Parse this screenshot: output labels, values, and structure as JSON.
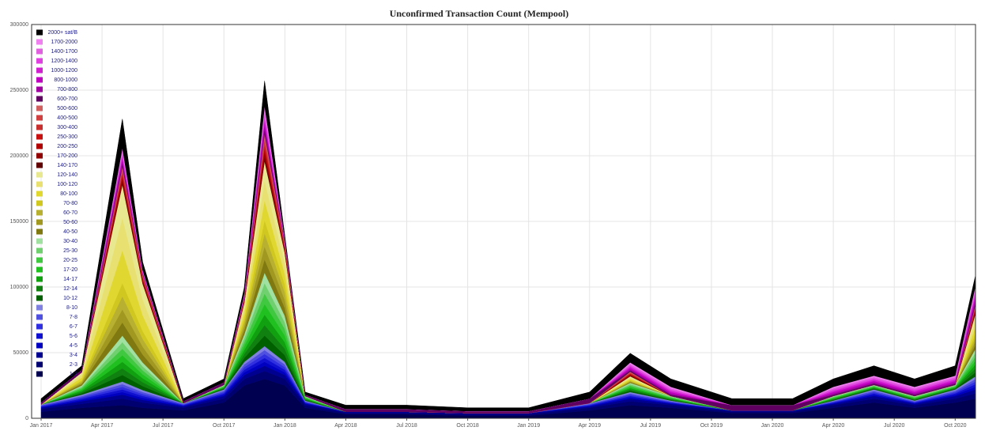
{
  "chart_data": {
    "type": "stacked-area",
    "title": "Unconfirmed Transaction Count (Mempool)",
    "x": [
      "2017-01",
      "2017-03",
      "2017-05",
      "2017-06",
      "2017-08",
      "2017-10",
      "2017-11",
      "2017-12",
      "2018-01",
      "2018-02",
      "2018-04",
      "2018-07",
      "2018-10",
      "2019-01",
      "2019-04",
      "2019-06",
      "2019-08",
      "2019-11",
      "2020-02",
      "2020-04",
      "2020-06",
      "2020-08",
      "2020-10",
      "2020-11"
    ],
    "xlim": [
      "2017-01",
      "2020-11"
    ],
    "xticks": [
      {
        "value": "2017-01",
        "label": "Jan 2017"
      },
      {
        "value": "2017-04",
        "label": "Apr 2017"
      },
      {
        "value": "2017-07",
        "label": "Jul 2017"
      },
      {
        "value": "2017-10",
        "label": "Oct 2017"
      },
      {
        "value": "2018-01",
        "label": "Jan 2018"
      },
      {
        "value": "2018-04",
        "label": "Apr 2018"
      },
      {
        "value": "2018-07",
        "label": "Jul 2018"
      },
      {
        "value": "2018-10",
        "label": "Oct 2018"
      },
      {
        "value": "2019-01",
        "label": "Jan 2019"
      },
      {
        "value": "2019-04",
        "label": "Apr 2019"
      },
      {
        "value": "2019-07",
        "label": "Jul 2019"
      },
      {
        "value": "2019-10",
        "label": "Oct 2019"
      },
      {
        "value": "2020-01",
        "label": "Jan 2020"
      },
      {
        "value": "2020-04",
        "label": "Apr 2020"
      },
      {
        "value": "2020-07",
        "label": "Jul 2020"
      },
      {
        "value": "2020-10",
        "label": "Oct 2020"
      }
    ],
    "ylim": [
      0,
      300000
    ],
    "yticks": [
      0,
      50000,
      100000,
      150000,
      200000,
      250000,
      300000
    ],
    "grid": true,
    "legend": "upper-left",
    "series": [
      {
        "name": "2000+ sat/B",
        "color": "#000000",
        "values": [
          3000,
          3000,
          22000,
          6000,
          2000,
          2500,
          4500,
          19000,
          2500,
          2000,
          3000,
          3000,
          2500,
          2500,
          5000,
          7000,
          6000,
          5000,
          5000,
          6000,
          7500,
          6000,
          7500,
          8000
        ]
      },
      {
        "name": "1700-2000",
        "color": "#f080f0",
        "values": [
          0,
          0,
          2000,
          500,
          0,
          0,
          500,
          3000,
          500,
          0,
          0,
          0,
          0,
          0,
          0,
          1000,
          1000,
          0,
          0,
          1000,
          1000,
          1000,
          1000,
          2000
        ]
      },
      {
        "name": "1400-1700",
        "color": "#e060e0",
        "values": [
          0,
          0,
          2000,
          500,
          0,
          0,
          500,
          3000,
          500,
          0,
          0,
          0,
          0,
          0,
          0,
          1000,
          1000,
          0,
          0,
          1000,
          1000,
          1000,
          1000,
          2000
        ]
      },
      {
        "name": "1200-1400",
        "color": "#e040e0",
        "values": [
          0,
          0,
          2000,
          500,
          0,
          0,
          500,
          3000,
          500,
          0,
          0,
          0,
          0,
          0,
          0,
          1000,
          1000,
          0,
          0,
          1000,
          1000,
          1000,
          1000,
          2000
        ]
      },
      {
        "name": "1000-1200",
        "color": "#d020d0",
        "values": [
          0,
          0,
          2000,
          500,
          0,
          0,
          500,
          3000,
          500,
          0,
          0,
          0,
          0,
          0,
          0,
          1000,
          1000,
          0,
          0,
          1000,
          1000,
          1000,
          1000,
          2000
        ]
      },
      {
        "name": "800-1000",
        "color": "#c000c0",
        "values": [
          0,
          0,
          2000,
          500,
          0,
          0,
          500,
          3000,
          500,
          0,
          0,
          0,
          0,
          0,
          0,
          1000,
          1000,
          0,
          0,
          1000,
          1000,
          1000,
          1000,
          2000
        ]
      },
      {
        "name": "700-800",
        "color": "#a000a0",
        "values": [
          0,
          0,
          2000,
          500,
          0,
          0,
          500,
          3000,
          500,
          0,
          0,
          0,
          0,
          0,
          0,
          1000,
          1000,
          0,
          0,
          1000,
          1000,
          1000,
          1000,
          2000
        ]
      },
      {
        "name": "600-700",
        "color": "#600060",
        "values": [
          1500,
          2000,
          2000,
          500,
          1500,
          2000,
          500,
          3000,
          500,
          1000,
          2000,
          2000,
          1500,
          1500,
          3500,
          1000,
          1000,
          4000,
          4000,
          1000,
          1000,
          1000,
          1000,
          2000
        ]
      },
      {
        "name": "500-600",
        "color": "#d06060",
        "values": [
          0,
          0,
          2000,
          1000,
          0,
          0,
          500,
          3000,
          1000,
          0,
          0,
          0,
          0,
          0,
          0,
          500,
          0,
          0,
          0,
          0,
          0,
          0,
          0,
          1000
        ]
      },
      {
        "name": "400-500",
        "color": "#d04040",
        "values": [
          0,
          0,
          2000,
          1000,
          0,
          0,
          500,
          3000,
          1000,
          0,
          0,
          0,
          0,
          0,
          0,
          500,
          0,
          0,
          0,
          0,
          0,
          0,
          0,
          1000
        ]
      },
      {
        "name": "300-400",
        "color": "#c83030",
        "values": [
          0,
          0,
          2000,
          1000,
          0,
          0,
          500,
          3000,
          1000,
          0,
          0,
          0,
          0,
          0,
          0,
          500,
          0,
          0,
          0,
          0,
          0,
          0,
          0,
          1000
        ]
      },
      {
        "name": "250-300",
        "color": "#c81010",
        "values": [
          0,
          0,
          2000,
          1000,
          0,
          0,
          500,
          3000,
          1000,
          0,
          0,
          0,
          0,
          0,
          0,
          500,
          0,
          0,
          0,
          0,
          0,
          0,
          0,
          1000
        ]
      },
      {
        "name": "200-250",
        "color": "#b00000",
        "values": [
          0,
          0,
          2000,
          1000,
          0,
          0,
          500,
          3000,
          1000,
          0,
          0,
          0,
          0,
          0,
          0,
          500,
          0,
          0,
          0,
          0,
          0,
          0,
          0,
          1000
        ]
      },
      {
        "name": "170-200",
        "color": "#900000",
        "values": [
          0,
          0,
          2000,
          1000,
          0,
          0,
          500,
          3000,
          1000,
          0,
          0,
          0,
          0,
          0,
          0,
          500,
          0,
          0,
          0,
          0,
          0,
          0,
          0,
          1000
        ]
      },
      {
        "name": "140-170",
        "color": "#600000",
        "values": [
          0,
          0,
          2000,
          1000,
          0,
          0,
          500,
          3000,
          1000,
          0,
          0,
          0,
          0,
          0,
          0,
          500,
          0,
          0,
          0,
          0,
          0,
          0,
          0,
          1000
        ]
      },
      {
        "name": "120-140",
        "color": "#e8e890",
        "values": [
          0,
          2000,
          25000,
          12000,
          0,
          0,
          4000,
          15000,
          8000,
          0,
          0,
          0,
          0,
          0,
          0,
          1000,
          0,
          0,
          0,
          0,
          0,
          0,
          0,
          5000
        ]
      },
      {
        "name": "100-120",
        "color": "#e8e070",
        "values": [
          0,
          2000,
          25000,
          12000,
          0,
          0,
          4000,
          15000,
          8000,
          0,
          0,
          0,
          0,
          0,
          0,
          1000,
          0,
          0,
          0,
          0,
          0,
          0,
          0,
          5000
        ]
      },
      {
        "name": "80-100",
        "color": "#e0d830",
        "values": [
          0,
          2000,
          25000,
          12000,
          0,
          0,
          4000,
          15000,
          8000,
          0,
          0,
          0,
          0,
          0,
          0,
          1000,
          0,
          0,
          0,
          0,
          0,
          0,
          0,
          5000
        ]
      },
      {
        "name": "70-80",
        "color": "#d0c820",
        "values": [
          0,
          1000,
          10000,
          6000,
          0,
          0,
          3000,
          10000,
          6000,
          0,
          0,
          0,
          0,
          0,
          0,
          500,
          0,
          0,
          0,
          0,
          0,
          0,
          0,
          3000
        ]
      },
      {
        "name": "60-70",
        "color": "#b8b030",
        "values": [
          0,
          1000,
          10000,
          6000,
          0,
          0,
          3000,
          10000,
          6000,
          0,
          0,
          0,
          0,
          0,
          0,
          500,
          0,
          0,
          0,
          0,
          0,
          0,
          0,
          3000
        ]
      },
      {
        "name": "50-60",
        "color": "#a09820",
        "values": [
          0,
          1000,
          10000,
          6000,
          0,
          0,
          3000,
          10000,
          6000,
          0,
          0,
          0,
          0,
          0,
          0,
          500,
          0,
          0,
          0,
          0,
          0,
          0,
          0,
          3000
        ]
      },
      {
        "name": "40-50",
        "color": "#807810",
        "values": [
          0,
          1000,
          10000,
          6000,
          0,
          0,
          3000,
          10000,
          6000,
          0,
          0,
          0,
          0,
          0,
          0,
          500,
          0,
          0,
          0,
          0,
          0,
          0,
          0,
          3000
        ]
      },
      {
        "name": "30-40",
        "color": "#a0e0a0",
        "values": [
          0,
          1000,
          5000,
          3000,
          0,
          500,
          3000,
          8000,
          5000,
          500,
          0,
          0,
          0,
          0,
          0,
          1000,
          500,
          0,
          0,
          500,
          500,
          500,
          500,
          3000
        ]
      },
      {
        "name": "25-30",
        "color": "#70d070",
        "values": [
          0,
          1000,
          5000,
          3000,
          0,
          500,
          3000,
          8000,
          5000,
          500,
          0,
          0,
          0,
          0,
          0,
          1000,
          500,
          0,
          0,
          500,
          500,
          500,
          500,
          3000
        ]
      },
      {
        "name": "20-25",
        "color": "#40c840",
        "values": [
          0,
          1000,
          5000,
          3000,
          0,
          500,
          3000,
          8000,
          5000,
          500,
          0,
          0,
          0,
          0,
          0,
          1000,
          500,
          0,
          0,
          500,
          500,
          500,
          500,
          3000
        ]
      },
      {
        "name": "17-20",
        "color": "#20c020",
        "values": [
          0,
          1000,
          5000,
          3000,
          0,
          500,
          3000,
          8000,
          5000,
          500,
          0,
          0,
          0,
          0,
          0,
          1000,
          500,
          0,
          0,
          500,
          500,
          500,
          500,
          3000
        ]
      },
      {
        "name": "14-17",
        "color": "#10a010",
        "values": [
          0,
          1000,
          5000,
          3000,
          0,
          500,
          3000,
          8000,
          5000,
          500,
          0,
          0,
          0,
          0,
          0,
          1000,
          500,
          0,
          0,
          500,
          500,
          500,
          500,
          3000
        ]
      },
      {
        "name": "12-14",
        "color": "#108010",
        "values": [
          0,
          1000,
          5000,
          3000,
          0,
          500,
          3000,
          8000,
          5000,
          500,
          0,
          0,
          0,
          0,
          0,
          1000,
          500,
          0,
          0,
          500,
          500,
          500,
          500,
          3000
        ]
      },
      {
        "name": "10-12",
        "color": "#006000",
        "values": [
          0,
          1000,
          5000,
          3000,
          0,
          500,
          3000,
          8000,
          5000,
          500,
          0,
          0,
          0,
          0,
          0,
          1000,
          500,
          0,
          0,
          500,
          500,
          500,
          500,
          3000
        ]
      },
      {
        "name": "8-10",
        "color": "#8080e0",
        "values": [
          500,
          1000,
          2000,
          1500,
          500,
          1000,
          2000,
          3000,
          2000,
          500,
          0,
          0,
          0,
          0,
          500,
          1000,
          500,
          0,
          0,
          500,
          1000,
          500,
          1000,
          2000
        ]
      },
      {
        "name": "7-8",
        "color": "#5050e0",
        "values": [
          500,
          1000,
          2000,
          1500,
          500,
          1000,
          2000,
          3000,
          2000,
          500,
          0,
          0,
          0,
          0,
          500,
          1000,
          500,
          0,
          0,
          500,
          1000,
          500,
          1000,
          2000
        ]
      },
      {
        "name": "6-7",
        "color": "#3030e0",
        "values": [
          500,
          1000,
          2000,
          1500,
          500,
          1000,
          2000,
          3000,
          2000,
          500,
          0,
          0,
          0,
          0,
          500,
          1000,
          500,
          0,
          0,
          500,
          1000,
          500,
          1000,
          2000
        ]
      },
      {
        "name": "5-6",
        "color": "#1010d0",
        "values": [
          500,
          1000,
          2000,
          1500,
          500,
          1000,
          2000,
          3000,
          2000,
          500,
          0,
          0,
          0,
          0,
          500,
          1000,
          500,
          0,
          0,
          500,
          1000,
          500,
          1000,
          2000
        ]
      },
      {
        "name": "4-5",
        "color": "#0000c0",
        "values": [
          500,
          1000,
          2000,
          1500,
          500,
          1000,
          2000,
          3000,
          2000,
          500,
          0,
          0,
          0,
          0,
          500,
          1000,
          500,
          0,
          0,
          500,
          1000,
          500,
          1000,
          2000
        ]
      },
      {
        "name": "3-4",
        "color": "#000090",
        "values": [
          1000,
          2000,
          3000,
          2000,
          1000,
          2000,
          3000,
          4000,
          3000,
          1000,
          1000,
          1000,
          1000,
          1000,
          1000,
          2000,
          1000,
          1000,
          1000,
          1000,
          2000,
          1000,
          2000,
          3000
        ]
      },
      {
        "name": "2-3",
        "color": "#000070",
        "values": [
          2000,
          3000,
          5000,
          4000,
          2000,
          3000,
          5000,
          6000,
          5000,
          2000,
          1000,
          1000,
          1000,
          1000,
          2000,
          3000,
          2000,
          1000,
          1000,
          2000,
          3000,
          2000,
          3000,
          4000
        ]
      },
      {
        "name": "1-2",
        "color": "#000050",
        "values": [
          5000,
          8000,
          10000,
          8000,
          6000,
          12000,
          25000,
          30000,
          25000,
          8000,
          3000,
          3000,
          2000,
          2000,
          6000,
          10000,
          8000,
          4000,
          4000,
          8000,
          12000,
          8000,
          12000,
          15000
        ]
      }
    ]
  }
}
